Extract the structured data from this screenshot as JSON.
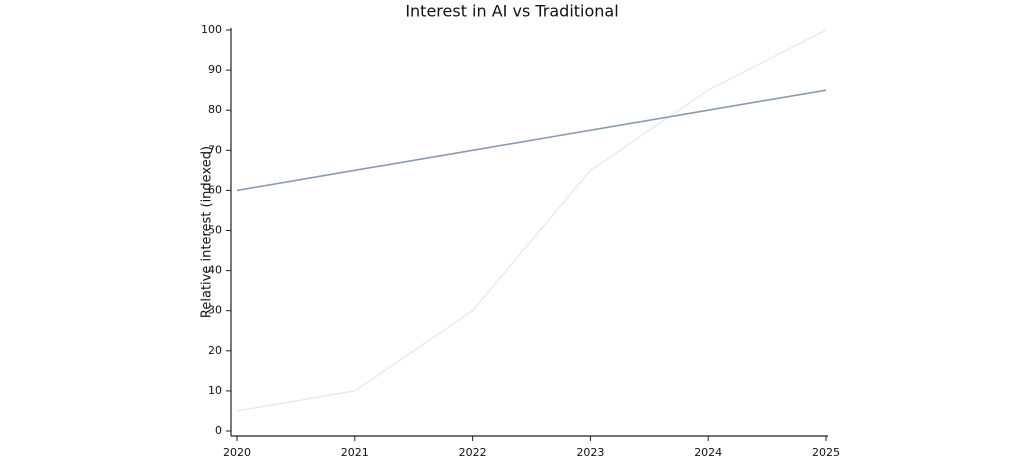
{
  "chart_data": {
    "type": "line",
    "title": "Interest in AI vs Traditional",
    "y_label": "Relative interest (indexed)",
    "x": [
      2020,
      2021,
      2022,
      2023,
      2024,
      2025
    ],
    "series": [
      {
        "color": "#e6e6fa",
        "values": [
          5,
          10,
          30,
          65,
          85,
          100
        ]
      },
      {
        "color": "#8a9bb0",
        "values": [
          60,
          65,
          70,
          75,
          80,
          85
        ]
      }
    ],
    "xlim": [
      2020,
      2025
    ],
    "xticks": [
      2020,
      2021,
      2022,
      2023,
      2024,
      2025
    ],
    "ylim": [
      0,
      100
    ],
    "yticks": [
      0,
      10,
      20,
      30,
      40,
      50,
      60,
      70,
      80,
      90,
      100
    ]
  }
}
